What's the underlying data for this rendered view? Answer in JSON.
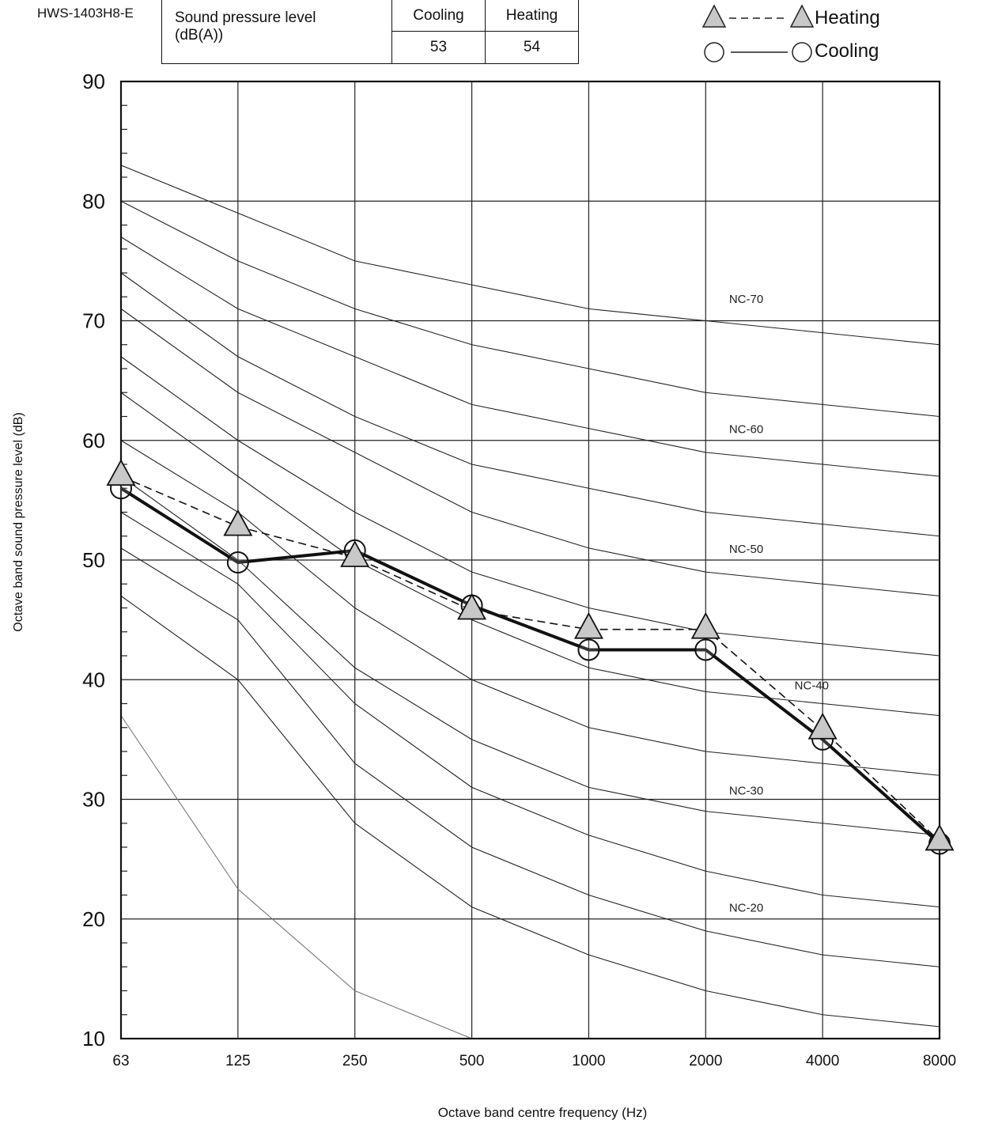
{
  "model": "HWS-1403H8-E",
  "spl_table": {
    "label_line1": "Sound pressure level",
    "label_line2": "(dB(A))",
    "col_cooling": "Cooling",
    "col_heating": "Heating",
    "val_cooling": "53",
    "val_heating": "54"
  },
  "legend": {
    "heating": "Heating",
    "cooling": "Cooling"
  },
  "chart_data": {
    "type": "line",
    "xlabel": "Octave band centre frequency (Hz)",
    "ylabel": "Octave band sound pressure level  (dB)",
    "x": [
      "63",
      "125",
      "250",
      "500",
      "1000",
      "2000",
      "4000",
      "8000"
    ],
    "ylim": [
      10,
      90
    ],
    "yticks": [
      "10",
      "20",
      "30",
      "40",
      "50",
      "60",
      "70",
      "80",
      "90"
    ],
    "grid": true,
    "legend_position": "top-right",
    "series": [
      {
        "name": "Heating",
        "marker": "triangle",
        "style": "dashed",
        "values": [
          57,
          52.8,
          50.2,
          45.8,
          44.2,
          44.2,
          35.8,
          26.5
        ]
      },
      {
        "name": "Cooling",
        "marker": "circle",
        "style": "solid",
        "values": [
          56,
          49.8,
          50.8,
          46.2,
          42.5,
          42.5,
          35,
          26.3
        ]
      }
    ],
    "nc_curves": [
      {
        "label": "NC-70",
        "values": [
          83,
          79,
          75,
          73,
          71,
          70,
          69,
          68
        ]
      },
      {
        "label": "",
        "values": [
          80,
          75,
          71,
          68,
          66,
          64,
          63,
          62
        ]
      },
      {
        "label": "NC-60",
        "values": [
          77,
          71,
          67,
          63,
          61,
          59,
          58,
          57
        ]
      },
      {
        "label": "",
        "values": [
          74,
          67,
          62,
          58,
          56,
          54,
          53,
          52
        ]
      },
      {
        "label": "NC-50",
        "values": [
          71,
          64,
          59,
          54,
          51,
          49,
          48,
          47
        ]
      },
      {
        "label": "",
        "values": [
          67,
          60,
          54,
          49,
          46,
          44,
          43,
          42
        ]
      },
      {
        "label": "NC-40",
        "values": [
          64,
          57,
          50,
          45,
          41,
          39,
          38,
          37
        ]
      },
      {
        "label": "",
        "values": [
          60,
          54,
          46,
          40,
          36,
          34,
          33,
          32
        ]
      },
      {
        "label": "NC-30",
        "values": [
          57,
          50,
          41,
          35,
          31,
          29,
          28,
          27
        ]
      },
      {
        "label": "",
        "values": [
          54,
          48,
          38,
          31,
          27,
          24,
          22,
          21
        ]
      },
      {
        "label": "NC-20",
        "values": [
          51,
          45,
          33,
          26,
          22,
          19,
          17,
          16
        ]
      },
      {
        "label": "",
        "values": [
          47,
          40,
          28,
          21,
          17,
          14,
          12,
          11
        ]
      },
      {
        "label": "",
        "values": [
          37,
          22.5,
          14,
          10,
          null,
          null,
          null,
          null
        ]
      }
    ],
    "nc_label_positions": [
      {
        "label": "NC-70",
        "x": "2000",
        "y": 71.5
      },
      {
        "label": "NC-60",
        "x": "2000",
        "y": 60.6
      },
      {
        "label": "NC-50",
        "x": "2000",
        "y": 50.6
      },
      {
        "label": "NC-40",
        "x": "4000",
        "y": 39.2
      },
      {
        "label": "NC-30",
        "x": "2000",
        "y": 30.4
      },
      {
        "label": "NC-20",
        "x": "2000",
        "y": 20.6
      }
    ],
    "nc_label_x_offset": {
      "2000": 0.2,
      "4000": -0.24
    }
  }
}
